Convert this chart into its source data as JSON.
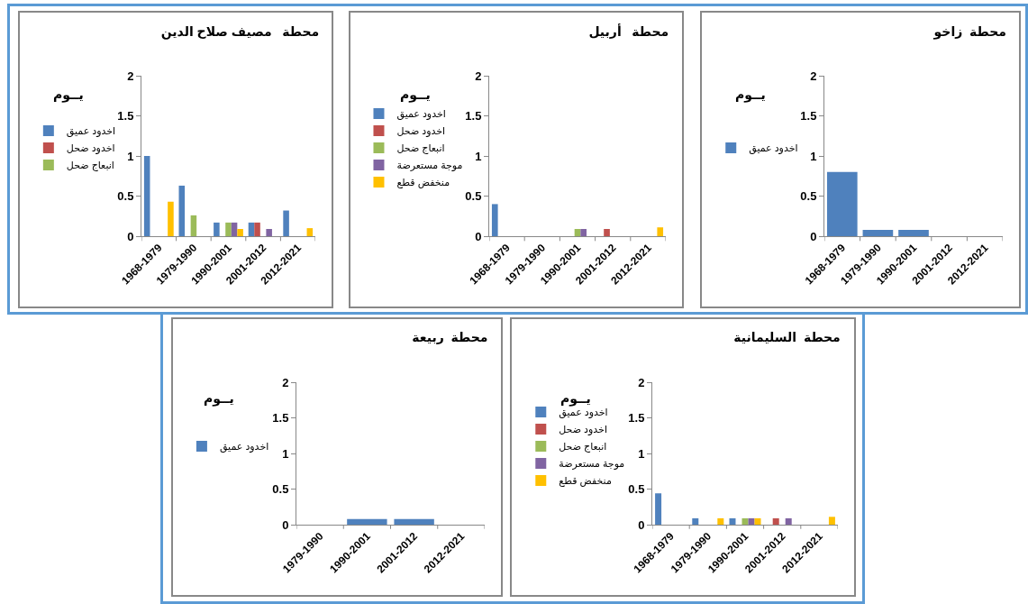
{
  "chart_data": [
    {
      "type": "bar",
      "title": "محطة   مصيف صلاح الدين",
      "ylabel": "يــوم",
      "categories": [
        "1968-1979",
        "1979-1990",
        "1990-2001",
        "2001-2012",
        "2012-2021"
      ],
      "ylim": [
        0,
        2
      ],
      "yticks": [
        0,
        0.5,
        1,
        1.5,
        2
      ],
      "legend": "left",
      "series": [
        {
          "name": "اخدود عميق",
          "color": "#4f81bd",
          "values": [
            1.0,
            0.63,
            0.17,
            0.17,
            0.32
          ]
        },
        {
          "name": "اخدود ضحل",
          "color": "#c0504d",
          "values": [
            0,
            0,
            0,
            0.17,
            0
          ]
        },
        {
          "name": "انبعاج ضحل",
          "color": "#9bbb59",
          "values": [
            0,
            0.26,
            0.17,
            0,
            0
          ]
        },
        {
          "color": "#8064a2",
          "values": [
            0,
            0,
            0.17,
            0.09,
            0
          ]
        },
        {
          "color": "#ffc000",
          "values": [
            0.43,
            0,
            0.09,
            0,
            0.1
          ]
        }
      ]
    },
    {
      "type": "bar",
      "title": "محطة   أربيل",
      "ylabel": "يــوم",
      "categories": [
        "1968-1979",
        "1979-1990",
        "1990-2001",
        "2001-2012",
        "2012-2021"
      ],
      "ylim": [
        0,
        2
      ],
      "yticks": [
        0,
        0.5,
        1,
        1.5,
        2
      ],
      "legend": "left",
      "series": [
        {
          "name": "اخدود عميق",
          "color": "#4f81bd",
          "values": [
            0.4,
            0,
            0,
            0,
            0
          ]
        },
        {
          "name": "اخدود ضحل",
          "color": "#c0504d",
          "values": [
            0,
            0,
            0,
            0.09,
            0
          ]
        },
        {
          "name": "انبعاج ضحل",
          "color": "#9bbb59",
          "values": [
            0,
            0,
            0.09,
            0,
            0
          ]
        },
        {
          "name": "موجة مستعرضة",
          "color": "#8064a2",
          "values": [
            0,
            0,
            0.09,
            0,
            0
          ]
        },
        {
          "name": "منخفض قطع",
          "color": "#ffc000",
          "values": [
            0,
            0,
            0,
            0,
            0.11
          ]
        }
      ]
    },
    {
      "type": "bar",
      "title": "محطة  زاخو",
      "ylabel": "يــوم",
      "categories": [
        "1968-1979",
        "1979-1990",
        "1990-2001",
        "2001-2012",
        "2012-2021"
      ],
      "ylim": [
        0,
        2
      ],
      "yticks": [
        0,
        0.5,
        1,
        1.5,
        2
      ],
      "legend": "left",
      "series": [
        {
          "name": "اخدود عميق",
          "color": "#4f81bd",
          "values": [
            0.8,
            0.08,
            0.08,
            0,
            0
          ]
        }
      ]
    },
    {
      "type": "bar",
      "title": "محطة  ربيعة",
      "ylabel": "يــوم",
      "categories": [
        "1979-1990",
        "1990-2001",
        "2001-2012",
        "2012-2021"
      ],
      "ylim": [
        0,
        2
      ],
      "yticks": [
        0,
        0.5,
        1,
        1.5,
        2
      ],
      "legend": "left",
      "series": [
        {
          "name": "اخدود عميق",
          "color": "#4f81bd",
          "values": [
            0,
            0.08,
            0.08,
            0
          ]
        }
      ]
    },
    {
      "type": "bar",
      "title": "محطة  السليمانية",
      "ylabel": "يــوم",
      "categories": [
        "1968-1979",
        "1979-1990",
        "1990-2001",
        "2001-2012",
        "2012-2021"
      ],
      "ylim": [
        0,
        2
      ],
      "yticks": [
        0,
        0.5,
        1,
        1.5,
        2
      ],
      "legend": "left",
      "series": [
        {
          "name": "اخدود عميق",
          "color": "#4f81bd",
          "values": [
            0.44,
            0.09,
            0.09,
            0,
            0
          ]
        },
        {
          "name": "اخدود ضحل",
          "color": "#c0504d",
          "values": [
            0,
            0,
            0,
            0.09,
            0
          ]
        },
        {
          "name": "انبعاج ضحل",
          "color": "#9bbb59",
          "values": [
            0,
            0,
            0.09,
            0,
            0
          ]
        },
        {
          "name": "موجة مستعرضة",
          "color": "#8064a2",
          "values": [
            0,
            0,
            0.09,
            0.09,
            0
          ]
        },
        {
          "name": "منخفض قطع",
          "color": "#ffc000",
          "values": [
            0,
            0.09,
            0.09,
            0,
            0.11
          ]
        }
      ]
    }
  ]
}
